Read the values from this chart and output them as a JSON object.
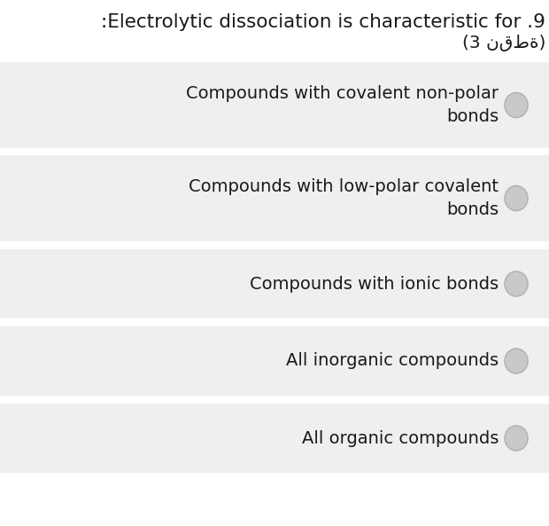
{
  "title_line1": ":Electrolytic dissociation is characteristic for .9",
  "title_line2": "(3 نقطة)",
  "background_color": "#ffffff",
  "option_bg_color": "#efefef",
  "text_color": "#1a1a1a",
  "radio_fill": "#c9c9c9",
  "radio_edge": "#b5b5b5",
  "options": [
    [
      "Compounds with covalent non-polar",
      "bonds"
    ],
    [
      "Compounds with low-polar covalent",
      "bonds"
    ],
    [
      "Compounds with ionic bonds",
      ""
    ],
    [
      "All inorganic compounds",
      ""
    ],
    [
      "All organic compounds",
      ""
    ]
  ],
  "title_fontsize": 15.5,
  "option_fontsize": 14,
  "subtitle_fontsize": 14.5,
  "fig_width": 6.2,
  "fig_height": 5.93,
  "dpi": 100
}
